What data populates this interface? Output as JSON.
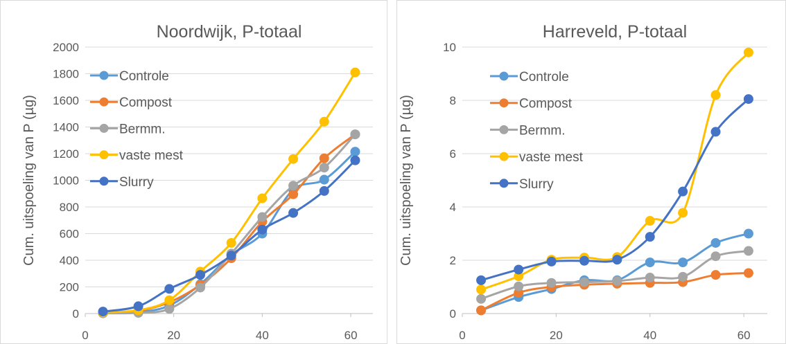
{
  "chart_data": [
    {
      "type": "line",
      "title": "Noordwijk, P-totaal",
      "xlabel": "",
      "ylabel": "Cum. uitspoeling van P (µg)",
      "xlim": [
        0,
        65
      ],
      "ylim": [
        0,
        2000
      ],
      "xticks": [
        0,
        20,
        40,
        60
      ],
      "yticks": [
        0,
        200,
        400,
        600,
        800,
        1000,
        1200,
        1400,
        1600,
        1800,
        2000
      ],
      "grid": "horizontal",
      "legend_position": "top-left",
      "x": [
        4,
        12,
        19,
        26,
        33,
        40,
        47,
        54,
        61
      ],
      "series": [
        {
          "name": "Controle",
          "color": "#5b9bd5",
          "values": [
            5,
            10,
            60,
            220,
            440,
            600,
            930,
            1005,
            1215
          ]
        },
        {
          "name": "Compost",
          "color": "#ed7d31",
          "values": [
            3,
            20,
            85,
            215,
            415,
            690,
            895,
            1165,
            1345
          ]
        },
        {
          "name": "Bermm.",
          "color": "#a5a5a5",
          "values": [
            2,
            5,
            35,
            195,
            450,
            725,
            960,
            1095,
            1345
          ]
        },
        {
          "name": "vaste mest",
          "color": "#ffc000",
          "values": [
            8,
            25,
            100,
            315,
            530,
            865,
            1160,
            1440,
            1810
          ]
        },
        {
          "name": "Slurry",
          "color": "#4472c4",
          "values": [
            15,
            55,
            185,
            290,
            435,
            630,
            755,
            920,
            1150
          ]
        }
      ]
    },
    {
      "type": "line",
      "title": "Harreveld, P-totaal",
      "xlabel": "",
      "ylabel": "Cum. uitspoeling van P (µg)",
      "xlim": [
        0,
        65
      ],
      "ylim": [
        0,
        10
      ],
      "xticks": [
        0,
        20,
        40,
        60
      ],
      "yticks": [
        0,
        2,
        4,
        6,
        8,
        10
      ],
      "grid": "horizontal",
      "legend_position": "top-left",
      "x": [
        4,
        12,
        19,
        26,
        33,
        40,
        47,
        54,
        61
      ],
      "series": [
        {
          "name": "Controle",
          "color": "#5b9bd5",
          "values": [
            0.12,
            0.62,
            0.92,
            1.25,
            1.25,
            1.92,
            1.92,
            2.65,
            3.0
          ]
        },
        {
          "name": "Compost",
          "color": "#ed7d31",
          "values": [
            0.12,
            0.78,
            1.0,
            1.08,
            1.12,
            1.15,
            1.18,
            1.45,
            1.52
          ]
        },
        {
          "name": "Bermm.",
          "color": "#a5a5a5",
          "values": [
            0.55,
            1.02,
            1.15,
            1.18,
            1.22,
            1.35,
            1.38,
            2.15,
            2.35
          ]
        },
        {
          "name": "vaste mest",
          "color": "#ffc000",
          "values": [
            0.9,
            1.4,
            2.02,
            2.1,
            2.12,
            3.48,
            3.78,
            8.2,
            9.8
          ]
        },
        {
          "name": "Slurry",
          "color": "#4472c4",
          "values": [
            1.25,
            1.65,
            1.95,
            1.98,
            2.02,
            2.88,
            4.58,
            6.82,
            8.05
          ]
        }
      ]
    }
  ]
}
